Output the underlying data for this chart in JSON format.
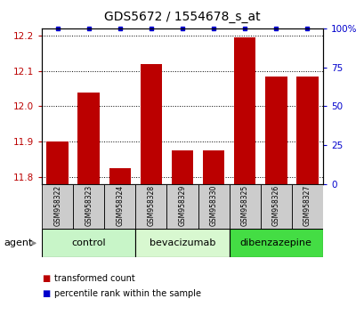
{
  "title": "GDS5672 / 1554678_s_at",
  "samples": [
    "GSM958322",
    "GSM958323",
    "GSM958324",
    "GSM958328",
    "GSM958329",
    "GSM958330",
    "GSM958325",
    "GSM958326",
    "GSM958327"
  ],
  "red_values": [
    11.9,
    12.04,
    11.825,
    12.12,
    11.875,
    11.875,
    12.195,
    12.085,
    12.085
  ],
  "blue_values": [
    100,
    100,
    100,
    100,
    100,
    100,
    100,
    100,
    100
  ],
  "groups": [
    {
      "label": "control",
      "indices": [
        0,
        1,
        2
      ],
      "color": "#c8f5c8"
    },
    {
      "label": "bevacizumab",
      "indices": [
        3,
        4,
        5
      ],
      "color": "#d8f8d0"
    },
    {
      "label": "dibenzazepine",
      "indices": [
        6,
        7,
        8
      ],
      "color": "#44dd44"
    }
  ],
  "ylim_left": [
    11.78,
    12.22
  ],
  "ylim_right": [
    0,
    100
  ],
  "yticks_left": [
    11.8,
    11.9,
    12.0,
    12.1,
    12.2
  ],
  "yticks_right": [
    0,
    25,
    50,
    75,
    100
  ],
  "bar_bottom": 11.78,
  "bar_color": "#bb0000",
  "blue_color": "#0000cc",
  "legend_red": "transformed count",
  "legend_blue": "percentile rank within the sample",
  "agent_label": "agent"
}
